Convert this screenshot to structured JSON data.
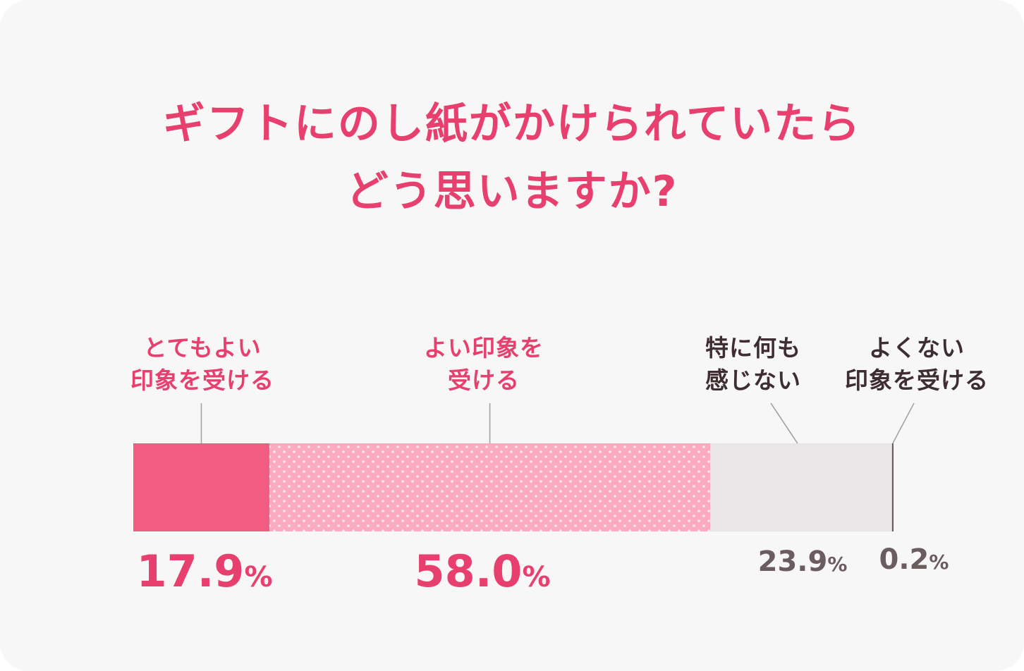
{
  "title_lines": [
    "ギフトにのし紙がかけられていたら",
    "どう思いますか?"
  ],
  "colors": {
    "accent": "#e8406e",
    "dark_text": "#3e2e31",
    "gray_text": "#6b5c5f"
  },
  "chart_data": {
    "type": "bar",
    "stacked": true,
    "orientation": "horizontal",
    "title": "ギフトにのし紙がかけられていたら どう思いますか?",
    "unit": "%",
    "categories": [
      {
        "lines": [
          "とてもよい",
          "印象を受ける"
        ],
        "value": 17.9,
        "value_label": "17.9",
        "color": "#f15c80",
        "pattern": "solid",
        "label_color": "#e8406e",
        "value_color": "#e8406e",
        "big": true
      },
      {
        "lines": [
          "よい印象を",
          "受ける"
        ],
        "value": 58.0,
        "value_label": "58.0",
        "color": "#fbaabf",
        "pattern": "dots",
        "label_color": "#e8406e",
        "value_color": "#e8406e",
        "big": true
      },
      {
        "lines": [
          "特に何も",
          "感じない"
        ],
        "value": 23.9,
        "value_label": "23.9",
        "color": "#e8e6e6",
        "pattern": "solid",
        "label_color": "#3e2e31",
        "value_color": "#6b5c5f",
        "big": false
      },
      {
        "lines": [
          "よくない",
          "印象を受ける"
        ],
        "value": 0.2,
        "value_label": "0.2",
        "color": "#6b5c5f",
        "pattern": "solid",
        "label_color": "#3e2e31",
        "value_color": "#6b5c5f",
        "big": false
      }
    ]
  }
}
